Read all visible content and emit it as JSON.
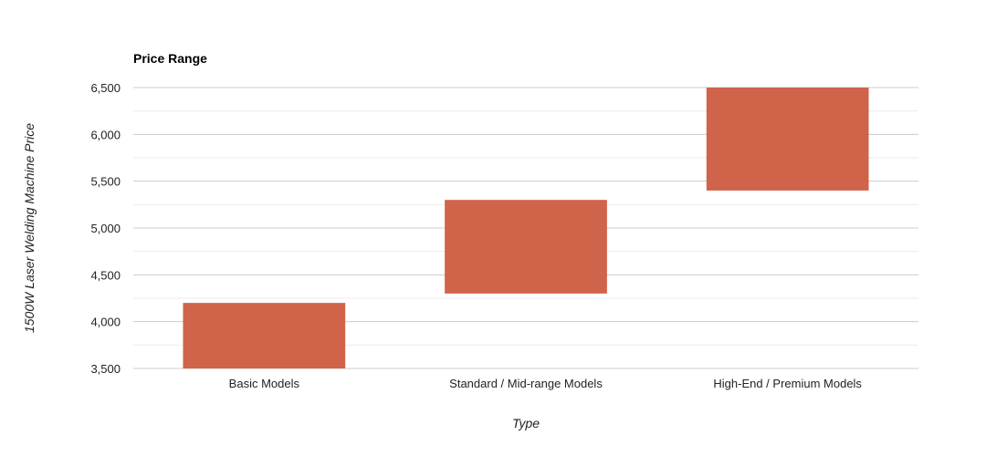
{
  "chart_data": {
    "type": "bar",
    "subtype": "floating-range",
    "title": "Price Range",
    "xlabel": "Type",
    "ylabel": "1500W Laser Welding Machine Price",
    "categories": [
      "Basic Models",
      "Standard / Mid-range Models",
      "High-End / Premium Models"
    ],
    "series": [
      {
        "ranges": [
          [
            3500,
            4200
          ],
          [
            4300,
            5300
          ],
          [
            5400,
            6500
          ]
        ]
      }
    ],
    "ylim": [
      3500,
      6500
    ],
    "yticks": [
      3500,
      4000,
      4500,
      5000,
      5500,
      6000,
      6500
    ],
    "ytick_labels": [
      "3,500",
      "4,000",
      "4,500",
      "5,000",
      "5,500",
      "6,000",
      "6,500"
    ],
    "grid": true,
    "legend": "none",
    "bar_color": "#d0644a",
    "grid_color": "#cccccc",
    "minor_grid_color": "#ebebeb"
  }
}
